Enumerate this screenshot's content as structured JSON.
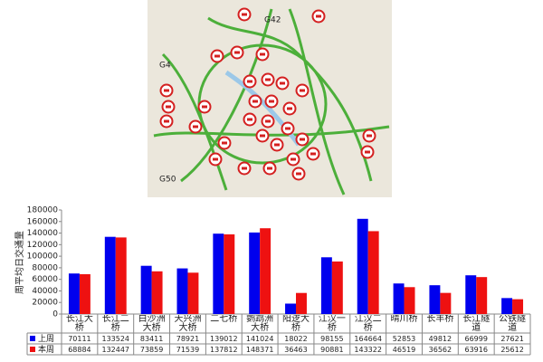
{
  "map_labels": [
    "G42",
    "G4",
    "G50"
  ],
  "chart_data": {
    "type": "bar",
    "y_label": "周平均日交通量",
    "categories": [
      "长江大桥",
      "长江二桥",
      "白沙洲大桥",
      "天兴洲大桥",
      "二七桥",
      "鹦鹉洲大桥",
      "阳逻大桥",
      "江汉一桥",
      "江汉二桥",
      "晴川桥",
      "长丰桥",
      "长江隧道",
      "公铁隧道"
    ],
    "series": [
      {
        "name": "上周",
        "color": "#0000ee",
        "values": [
          70111,
          133524,
          83411,
          78921,
          139012,
          141024,
          18022,
          98155,
          164664,
          52853,
          49812,
          66999,
          27621
        ]
      },
      {
        "name": "本周",
        "color": "#ee1111",
        "values": [
          68884,
          132447,
          73859,
          71539,
          137812,
          148371,
          36463,
          90881,
          143322,
          46519,
          36562,
          63916,
          25612
        ]
      }
    ],
    "ylim": [
      0,
      180000
    ],
    "yticks": [
      0,
      20000,
      40000,
      60000,
      80000,
      100000,
      120000,
      140000,
      160000,
      180000
    ],
    "grid": false
  }
}
